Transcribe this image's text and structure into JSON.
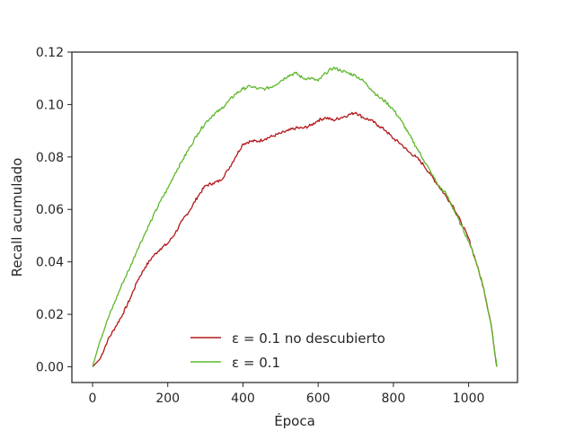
{
  "chart_data": {
    "type": "line",
    "title": "",
    "xlabel": "Época",
    "ylabel": "Recall acumulado",
    "xlim": [
      -55,
      1130
    ],
    "ylim": [
      -0.006,
      0.12
    ],
    "xticks": [
      "0",
      "200",
      "400",
      "600",
      "800",
      "1000"
    ],
    "yticks": [
      "0.00",
      "0.02",
      "0.04",
      "0.06",
      "0.08",
      "0.10",
      "0.12"
    ],
    "grid": false,
    "legend": "bottom-center",
    "series": [
      {
        "name": "ε = 0.1 no descubierto",
        "color": "#b2181b",
        "points": [
          [
            0,
            0.0
          ],
          [
            20,
            0.003
          ],
          [
            40,
            0.01
          ],
          [
            60,
            0.015
          ],
          [
            80,
            0.02
          ],
          [
            100,
            0.026
          ],
          [
            120,
            0.033
          ],
          [
            140,
            0.038
          ],
          [
            160,
            0.042
          ],
          [
            180,
            0.045
          ],
          [
            200,
            0.047
          ],
          [
            220,
            0.051
          ],
          [
            240,
            0.056
          ],
          [
            260,
            0.06
          ],
          [
            280,
            0.065
          ],
          [
            300,
            0.069
          ],
          [
            320,
            0.07
          ],
          [
            340,
            0.071
          ],
          [
            360,
            0.075
          ],
          [
            380,
            0.08
          ],
          [
            400,
            0.085
          ],
          [
            420,
            0.086
          ],
          [
            440,
            0.086
          ],
          [
            460,
            0.087
          ],
          [
            480,
            0.088
          ],
          [
            500,
            0.089
          ],
          [
            520,
            0.09
          ],
          [
            540,
            0.091
          ],
          [
            560,
            0.091
          ],
          [
            580,
            0.092
          ],
          [
            600,
            0.094
          ],
          [
            620,
            0.095
          ],
          [
            640,
            0.094
          ],
          [
            660,
            0.095
          ],
          [
            680,
            0.096
          ],
          [
            700,
            0.097
          ],
          [
            720,
            0.095
          ],
          [
            740,
            0.094
          ],
          [
            760,
            0.092
          ],
          [
            780,
            0.09
          ],
          [
            800,
            0.087
          ],
          [
            820,
            0.085
          ],
          [
            840,
            0.082
          ],
          [
            860,
            0.08
          ],
          [
            880,
            0.077
          ],
          [
            900,
            0.073
          ],
          [
            920,
            0.069
          ],
          [
            940,
            0.065
          ],
          [
            960,
            0.061
          ],
          [
            980,
            0.055
          ],
          [
            1000,
            0.049
          ],
          [
            1020,
            0.04
          ],
          [
            1040,
            0.03
          ],
          [
            1060,
            0.016
          ],
          [
            1075,
            0.0
          ]
        ]
      },
      {
        "name": "ε = 0.1",
        "color": "#5db82c",
        "points": [
          [
            0,
            0.0
          ],
          [
            20,
            0.01
          ],
          [
            40,
            0.018
          ],
          [
            60,
            0.025
          ],
          [
            80,
            0.032
          ],
          [
            100,
            0.038
          ],
          [
            120,
            0.045
          ],
          [
            140,
            0.051
          ],
          [
            160,
            0.057
          ],
          [
            180,
            0.063
          ],
          [
            200,
            0.068
          ],
          [
            220,
            0.074
          ],
          [
            240,
            0.079
          ],
          [
            260,
            0.084
          ],
          [
            280,
            0.089
          ],
          [
            300,
            0.093
          ],
          [
            320,
            0.096
          ],
          [
            340,
            0.098
          ],
          [
            360,
            0.101
          ],
          [
            380,
            0.104
          ],
          [
            400,
            0.106
          ],
          [
            420,
            0.107
          ],
          [
            440,
            0.106
          ],
          [
            460,
            0.106
          ],
          [
            480,
            0.107
          ],
          [
            500,
            0.109
          ],
          [
            520,
            0.111
          ],
          [
            540,
            0.112
          ],
          [
            560,
            0.11
          ],
          [
            580,
            0.11
          ],
          [
            600,
            0.109
          ],
          [
            620,
            0.112
          ],
          [
            640,
            0.114
          ],
          [
            660,
            0.113
          ],
          [
            680,
            0.112
          ],
          [
            700,
            0.111
          ],
          [
            720,
            0.109
          ],
          [
            740,
            0.106
          ],
          [
            760,
            0.103
          ],
          [
            780,
            0.101
          ],
          [
            800,
            0.098
          ],
          [
            820,
            0.094
          ],
          [
            840,
            0.089
          ],
          [
            860,
            0.084
          ],
          [
            880,
            0.079
          ],
          [
            900,
            0.074
          ],
          [
            920,
            0.069
          ],
          [
            940,
            0.066
          ],
          [
            960,
            0.06
          ],
          [
            980,
            0.054
          ],
          [
            1000,
            0.048
          ],
          [
            1020,
            0.04
          ],
          [
            1040,
            0.03
          ],
          [
            1060,
            0.016
          ],
          [
            1075,
            0.0
          ]
        ]
      }
    ]
  }
}
